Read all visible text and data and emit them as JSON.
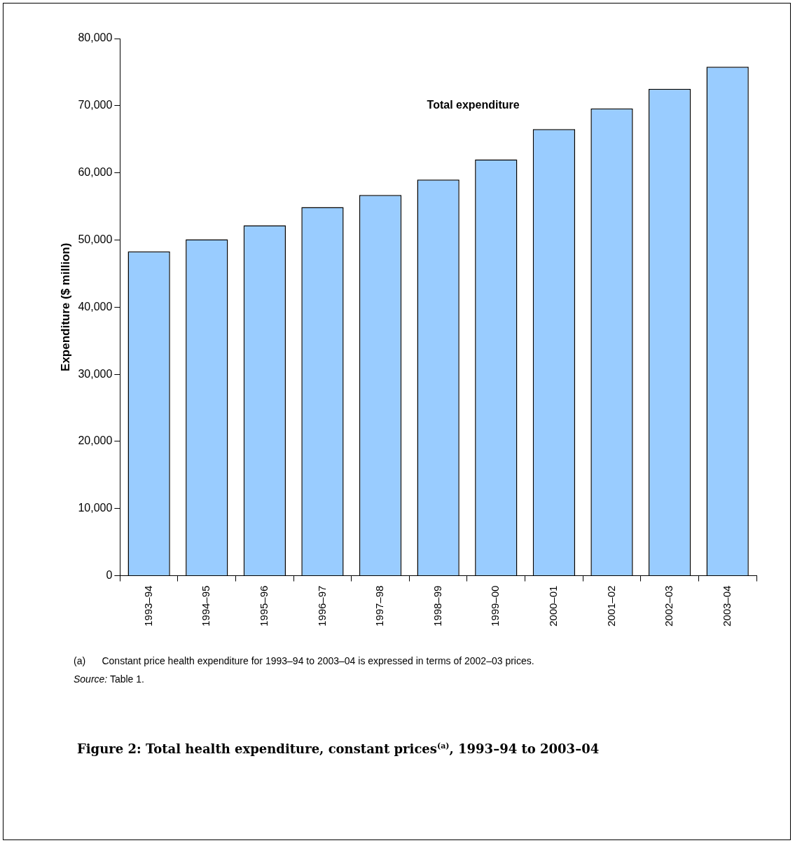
{
  "chart_data": {
    "type": "bar",
    "title": "Figure 2: Total health expenditure, constant prices$^{(a)}$, 1993–94 to 2003–04",
    "ylabel": "Expenditure ($ million)",
    "categories": [
      "1993–94",
      "1994–95",
      "1995–96",
      "1996–97",
      "1997–98",
      "1998–99",
      "1999–00",
      "2000–01",
      "2001–02",
      "2002–03",
      "2003–04"
    ],
    "values": [
      48300,
      50100,
      52200,
      54900,
      56700,
      59000,
      62000,
      66500,
      69600,
      72500,
      75800
    ],
    "color": "#99ccff",
    "ylim": [
      0,
      80000
    ],
    "yticks": [
      {
        "value": 0,
        "label": "0"
      },
      {
        "value": 10000,
        "label": "10,000"
      },
      {
        "value": 20000,
        "label": "20,000"
      },
      {
        "value": 30000,
        "label": "30,000"
      },
      {
        "value": 40000,
        "label": "40,000"
      },
      {
        "value": 50000,
        "label": "50,000"
      },
      {
        "value": 60000,
        "label": "60,000"
      },
      {
        "value": 70000,
        "label": "70,000"
      },
      {
        "value": 80000,
        "label": "80,000"
      }
    ],
    "grid": false,
    "legend": false,
    "annotations": [
      "Total expenditure",
      "(a)\tConstant price health expenditure for 1993–94 to 2003–04 is expressed in terms of 2002–03 prices.",
      "Source: Table 1."
    ]
  }
}
